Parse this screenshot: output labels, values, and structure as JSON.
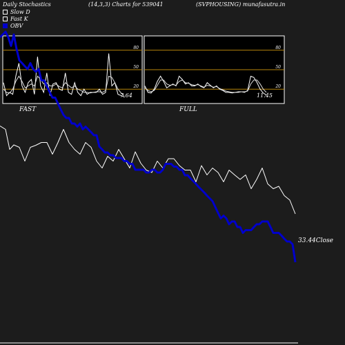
{
  "header": {
    "left": "Daily Stochastics",
    "center": "(14,3,3) Charts for 539041",
    "right": "(SVPHOUSING) munafasutra.in"
  },
  "legend": [
    {
      "label": "Slow  D",
      "color": "#ffffff",
      "icon": "hollow-square-icon"
    },
    {
      "label": "Fast K",
      "color": "#ffffff",
      "icon": "hollow-square-icon"
    },
    {
      "label": "OBV",
      "color": "#0000cc",
      "icon": "filled-square-icon"
    }
  ],
  "chart_data": [
    {
      "type": "line",
      "name": "FAST",
      "title": "FAST",
      "ylim": [
        0,
        100
      ],
      "yticks": [
        20,
        50,
        80
      ],
      "value_label": "7.64",
      "series": [
        {
          "name": "Fast K",
          "values": [
            30,
            10,
            15,
            12,
            40,
            60,
            25,
            15,
            30,
            35,
            12,
            70,
            25,
            15,
            45,
            10,
            28,
            30,
            20,
            18,
            45,
            15,
            12,
            30,
            15,
            10,
            20,
            12,
            15,
            15,
            15,
            20,
            12,
            15,
            75,
            25,
            30,
            12,
            10,
            8
          ]
        },
        {
          "name": "Slow  D",
          "values": [
            20,
            15,
            14,
            20,
            32,
            40,
            32,
            22,
            25,
            28,
            25,
            40,
            35,
            28,
            30,
            25,
            25,
            28,
            24,
            22,
            30,
            26,
            22,
            25,
            20,
            18,
            15,
            15,
            14,
            15,
            16,
            16,
            15,
            18,
            40,
            38,
            30,
            20,
            14,
            10
          ]
        }
      ]
    },
    {
      "type": "line",
      "name": "FULL",
      "title": "FULL",
      "ylim": [
        0,
        100
      ],
      "yticks": [
        20,
        50,
        80
      ],
      "value_label": "11.45",
      "series": [
        {
          "name": "Fast K",
          "values": [
            25,
            15,
            14,
            20,
            32,
            40,
            32,
            22,
            25,
            28,
            25,
            40,
            35,
            28,
            30,
            25,
            25,
            28,
            24,
            22,
            30,
            26,
            22,
            25,
            20,
            18,
            15,
            15,
            14,
            15,
            16,
            16,
            15,
            18,
            40,
            38,
            30,
            20,
            14,
            11
          ]
        },
        {
          "name": "Slow  D",
          "values": [
            22,
            18,
            16,
            18,
            26,
            34,
            34,
            28,
            26,
            27,
            26,
            32,
            34,
            30,
            29,
            27,
            26,
            27,
            25,
            23,
            26,
            25,
            23,
            24,
            21,
            19,
            17,
            16,
            15,
            15,
            15,
            16,
            16,
            17,
            28,
            34,
            34,
            28,
            20,
            15
          ]
        }
      ]
    },
    {
      "type": "line",
      "name": "Price and OBV",
      "value_label": "33.44Close",
      "series": [
        {
          "name": "Close",
          "x": [
            0,
            8,
            14,
            20,
            28,
            36,
            44,
            52,
            60,
            68,
            76,
            84,
            92,
            100,
            108,
            116,
            124,
            132,
            140,
            148,
            156,
            164,
            172,
            180,
            188,
            196,
            204,
            212,
            220,
            228,
            236,
            244,
            252,
            260,
            268,
            276,
            284,
            292,
            300,
            308,
            316,
            324,
            332,
            340,
            348,
            356,
            364,
            372,
            380,
            388,
            396,
            404,
            412,
            420,
            428
          ],
          "values": [
            63.5,
            62.5,
            56.7,
            58,
            57.3,
            53.3,
            57.3,
            57.9,
            58.7,
            58.7,
            55.3,
            58.7,
            62.5,
            58.7,
            56.7,
            55.3,
            58.7,
            57.3,
            53.3,
            51.3,
            54.7,
            53.3,
            56.7,
            54,
            51.3,
            56,
            52.7,
            50.7,
            50,
            53.3,
            51.3,
            54,
            54,
            52,
            50.7,
            50.7,
            47.3,
            52,
            49.3,
            51.3,
            50,
            47.3,
            50.7,
            49.3,
            48,
            49.3,
            45.3,
            48,
            51.3,
            46.7,
            45.3,
            46,
            43.3,
            42,
            38
          ]
        },
        {
          "name": "OBV",
          "x": [
            0,
            4,
            8,
            12,
            16,
            20,
            24,
            28,
            32,
            36,
            40,
            44,
            48,
            52,
            56,
            60,
            64,
            68,
            72,
            76,
            80,
            84,
            88,
            92,
            96,
            100,
            104,
            108,
            112,
            116,
            120,
            124,
            128,
            132,
            136,
            140,
            144,
            148,
            152,
            156,
            160,
            164,
            168,
            172,
            176,
            180,
            184,
            188,
            192,
            196,
            200,
            204,
            208,
            212,
            216,
            220,
            224,
            228,
            232,
            236,
            240,
            244,
            248,
            252,
            256,
            260,
            264,
            268,
            272,
            276,
            280,
            284,
            288,
            292,
            296,
            300,
            304,
            308,
            312,
            316,
            320,
            324,
            328,
            332,
            336,
            340,
            344,
            348,
            352,
            356,
            360,
            364,
            368,
            372,
            376,
            380,
            384,
            388,
            392,
            396,
            400,
            404,
            408,
            412,
            416,
            420,
            424,
            428
          ],
          "values": [
            89.2,
            90,
            90.8,
            89.2,
            86.7,
            90,
            85.8,
            82.5,
            81.7,
            80.8,
            80,
            81.7,
            80,
            79.2,
            80,
            76.7,
            76.7,
            75,
            73.3,
            71.7,
            71.7,
            70,
            68.3,
            66.7,
            65.8,
            65.8,
            64.2,
            64.2,
            63.3,
            64.2,
            62.5,
            63.3,
            62.5,
            61.7,
            60.8,
            60.8,
            57.5,
            56.7,
            55.8,
            55.8,
            55,
            55,
            54.2,
            54.2,
            54.2,
            53.3,
            53.3,
            52.5,
            52.5,
            50.8,
            50.8,
            50.8,
            50.8,
            50,
            50,
            50.8,
            50.8,
            50,
            50,
            50.8,
            52.5,
            52.5,
            52.5,
            51.7,
            51.7,
            50.8,
            50.8,
            49.2,
            49.2,
            48.3,
            47.5,
            46.7,
            45.8,
            45,
            44.2,
            43.3,
            42.5,
            41.7,
            40,
            38.3,
            36.7,
            37.5,
            36.7,
            35,
            35.8,
            35.8,
            34.2,
            34.2,
            32.5,
            33.3,
            33.3,
            33.3,
            34.2,
            35,
            35,
            35.8,
            35.8,
            35.8,
            34.2,
            32.5,
            32.5,
            32.5,
            31.7,
            30.8,
            30,
            30,
            29.2,
            24
          ]
        }
      ]
    }
  ]
}
